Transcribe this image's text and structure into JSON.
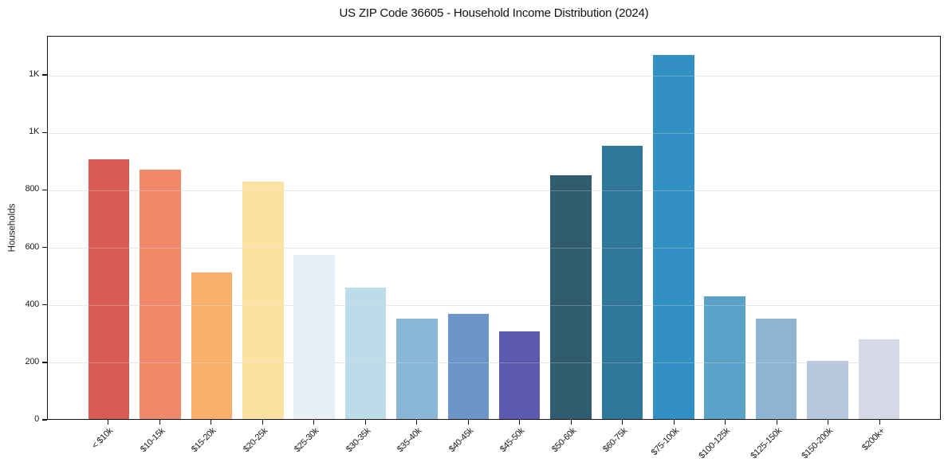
{
  "chart_data": {
    "type": "bar",
    "title": "US ZIP Code 36605 - Household Income Distribution (2024)",
    "xlabel": "",
    "ylabel": "Households",
    "categories": [
      "< $10k",
      "$10-15k",
      "$15-20k",
      "$20-25k",
      "$25-30k",
      "$30-35k",
      "$35-40k",
      "$40-45k",
      "$45-50k",
      "$50-60k",
      "$60-75k",
      "$75-100k",
      "$100-125k",
      "$125-150k",
      "$150-200k",
      "$200k+"
    ],
    "values": [
      907,
      871,
      512,
      830,
      574,
      458,
      352,
      368,
      305,
      853,
      955,
      1271,
      429,
      351,
      202,
      279
    ],
    "bar_colors": [
      "#d65c55",
      "#f0896a",
      "#f9b06a",
      "#fce2a2",
      "#e6f0f5",
      "#bcdcea",
      "#8ab6d8",
      "#6d95c8",
      "#5b5aae",
      "#315b6e",
      "#2f779b",
      "#3390c3",
      "#5aa2c8",
      "#90b4d4",
      "#b6c6dd",
      "#d5d8e5"
    ],
    "yticks": [
      {
        "value": 0,
        "label": "0"
      },
      {
        "value": 200,
        "label": "200"
      },
      {
        "value": 400,
        "label": "400"
      },
      {
        "value": 600,
        "label": "600"
      },
      {
        "value": 800,
        "label": "800"
      },
      {
        "value": 1000,
        "label": "1K"
      },
      {
        "value": 1200,
        "label": "1K"
      }
    ],
    "ylim": [
      0,
      1336
    ],
    "grid": "horizontal",
    "legend": "none",
    "background_color": "#ffffff",
    "grid_color": "#e9e9ed",
    "axis_color": "#141414",
    "bar_width_fraction": 0.8
  }
}
